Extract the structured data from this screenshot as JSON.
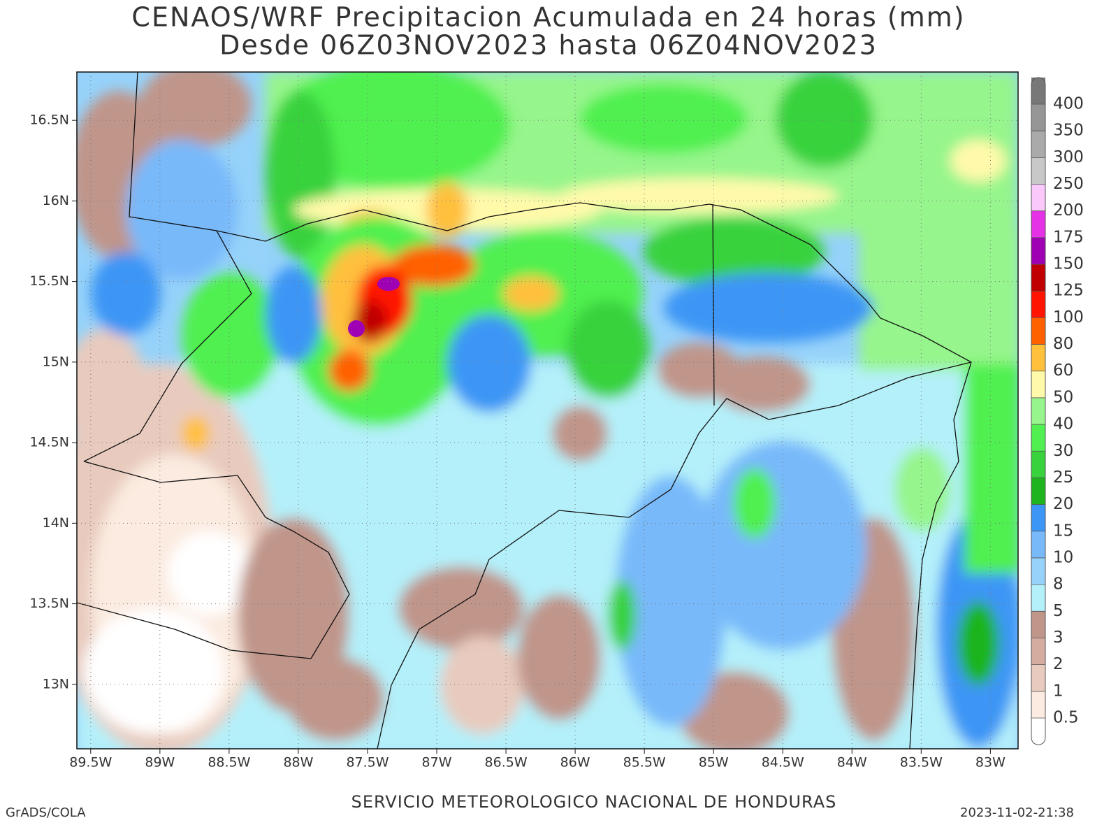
{
  "title": "CENAOS/WRF Precipitacion Acumulada en 24 horas (mm)",
  "subtitle": "Desde 06Z03NOV2023 hasta 06Z04NOV2023",
  "map": {
    "xlim": [
      -89.6,
      -82.8
    ],
    "ylim": [
      12.6,
      16.8
    ],
    "xticks": [
      {
        "value": -89.5,
        "label": "89.5W"
      },
      {
        "value": -89,
        "label": "89W"
      },
      {
        "value": -88.5,
        "label": "88.5W"
      },
      {
        "value": -88,
        "label": "88W"
      },
      {
        "value": -87.5,
        "label": "87.5W"
      },
      {
        "value": -87,
        "label": "87W"
      },
      {
        "value": -86.5,
        "label": "86.5W"
      },
      {
        "value": -86,
        "label": "86W"
      },
      {
        "value": -85.5,
        "label": "85.5W"
      },
      {
        "value": -85,
        "label": "85W"
      },
      {
        "value": -84.5,
        "label": "84.5W"
      },
      {
        "value": -84,
        "label": "84W"
      },
      {
        "value": -83.5,
        "label": "83.5W"
      },
      {
        "value": -83,
        "label": "83W"
      }
    ],
    "yticks": [
      {
        "value": 13,
        "label": "13N"
      },
      {
        "value": 13.5,
        "label": "13.5N"
      },
      {
        "value": 14,
        "label": "14N"
      },
      {
        "value": 14.5,
        "label": "14.5N"
      },
      {
        "value": 15,
        "label": "15N"
      },
      {
        "value": 15.5,
        "label": "15.5N"
      },
      {
        "value": 16,
        "label": "16N"
      },
      {
        "value": 16.5,
        "label": "16.5N"
      }
    ],
    "grid": true
  },
  "colorbar": {
    "levels": [
      0.5,
      1,
      2,
      3,
      5,
      8,
      10,
      15,
      20,
      25,
      30,
      40,
      50,
      60,
      80,
      100,
      125,
      150,
      175,
      200,
      250,
      300,
      350,
      400
    ],
    "colors": [
      "#ffffff",
      "#fbebe0",
      "#e8cbbe",
      "#d4aca0",
      "#c0958a",
      "#b4f0fa",
      "#96d2fa",
      "#78b9fa",
      "#3c96f5",
      "#1eb41e",
      "#37d23c",
      "#50f050",
      "#96f58c",
      "#fffaaa",
      "#ffc03c",
      "#ff6000",
      "#ff1400",
      "#c00000",
      "#a000b4",
      "#e632e6",
      "#fac8fa",
      "#c8c8c8",
      "#aaaaaa",
      "#969696",
      "#787878"
    ]
  },
  "footer": {
    "left": "GrADS/COLA",
    "center": "SERVICIO METEOROLOGICO NACIONAL DE HONDURAS",
    "right": "2023-11-02-21:38"
  }
}
